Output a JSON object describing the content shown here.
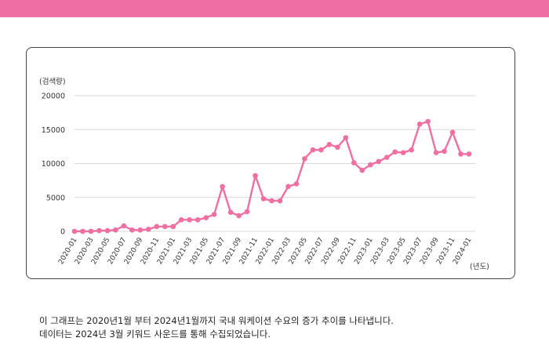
{
  "caption": {
    "line1": "이 그래프는 2020년1월 부터 2024년1월까지 국내 워케이션 수요의 증가 추이를 나타냅니다.",
    "line2": "데이터는 2024년 3월 키워드 사운드를 통해 수집되었습니다."
  },
  "colors": {
    "header": "#f06fa2",
    "series": "#f06fa2",
    "grid": "#d9d9d9",
    "axis_text": "#333333"
  },
  "chart_data": {
    "type": "line",
    "ylabel": "(검색량)",
    "xlabel": "(년도)",
    "ylim": [
      0,
      20000
    ],
    "yticks": [
      0,
      5000,
      10000,
      15000,
      20000
    ],
    "grid": "horizontal",
    "x": [
      "2020-01",
      "2020-02",
      "2020-03",
      "2020-04",
      "2020-05",
      "2020-06",
      "2020-07",
      "2020-08",
      "2020-09",
      "2020-10",
      "2020-11",
      "2020-12",
      "2021-01",
      "2021-02",
      "2021-03",
      "2021-04",
      "2021-05",
      "2021-06",
      "2021-07",
      "2021-08",
      "2021-09",
      "2021-10",
      "2021-11",
      "2021-12",
      "2022-01",
      "2022-02",
      "2022-03",
      "2022-04",
      "2022-05",
      "2022-06",
      "2022-07",
      "2022-08",
      "2022-09",
      "2022-10",
      "2022-11",
      "2022-12",
      "2023-01",
      "2023-02",
      "2023-03",
      "2023-04",
      "2023-05",
      "2023-06",
      "2023-07",
      "2023-08",
      "2023-09",
      "2023-10",
      "2023-11",
      "2023-12",
      "2024-01"
    ],
    "xtick_labels": [
      "2020-01",
      "2020-03",
      "2020-05",
      "2020-07",
      "2020-09",
      "2020-11",
      "2021-01",
      "2021-03",
      "2021-05",
      "2021-07",
      "2021-09",
      "2021-11",
      "2022-01",
      "2022-03",
      "2022-05",
      "2022-07",
      "2022-09",
      "2022-11",
      "2023-01",
      "2023-03",
      "2023-05",
      "2023-07",
      "2023-09",
      "2023-11",
      "2024-01"
    ],
    "series": [
      {
        "values": [
          0,
          0,
          0,
          100,
          100,
          200,
          800,
          200,
          200,
          300,
          700,
          700,
          700,
          1700,
          1700,
          1700,
          2000,
          2500,
          6600,
          2800,
          2300,
          2900,
          8200,
          4800,
          4500,
          4500,
          6600,
          7000,
          10700,
          12000,
          12000,
          12800,
          12400,
          13800,
          10100,
          9000,
          9800,
          10300,
          10900,
          11700,
          11600,
          12000,
          15800,
          16200,
          11600,
          11800,
          14600,
          11400,
          11400
        ]
      }
    ]
  }
}
